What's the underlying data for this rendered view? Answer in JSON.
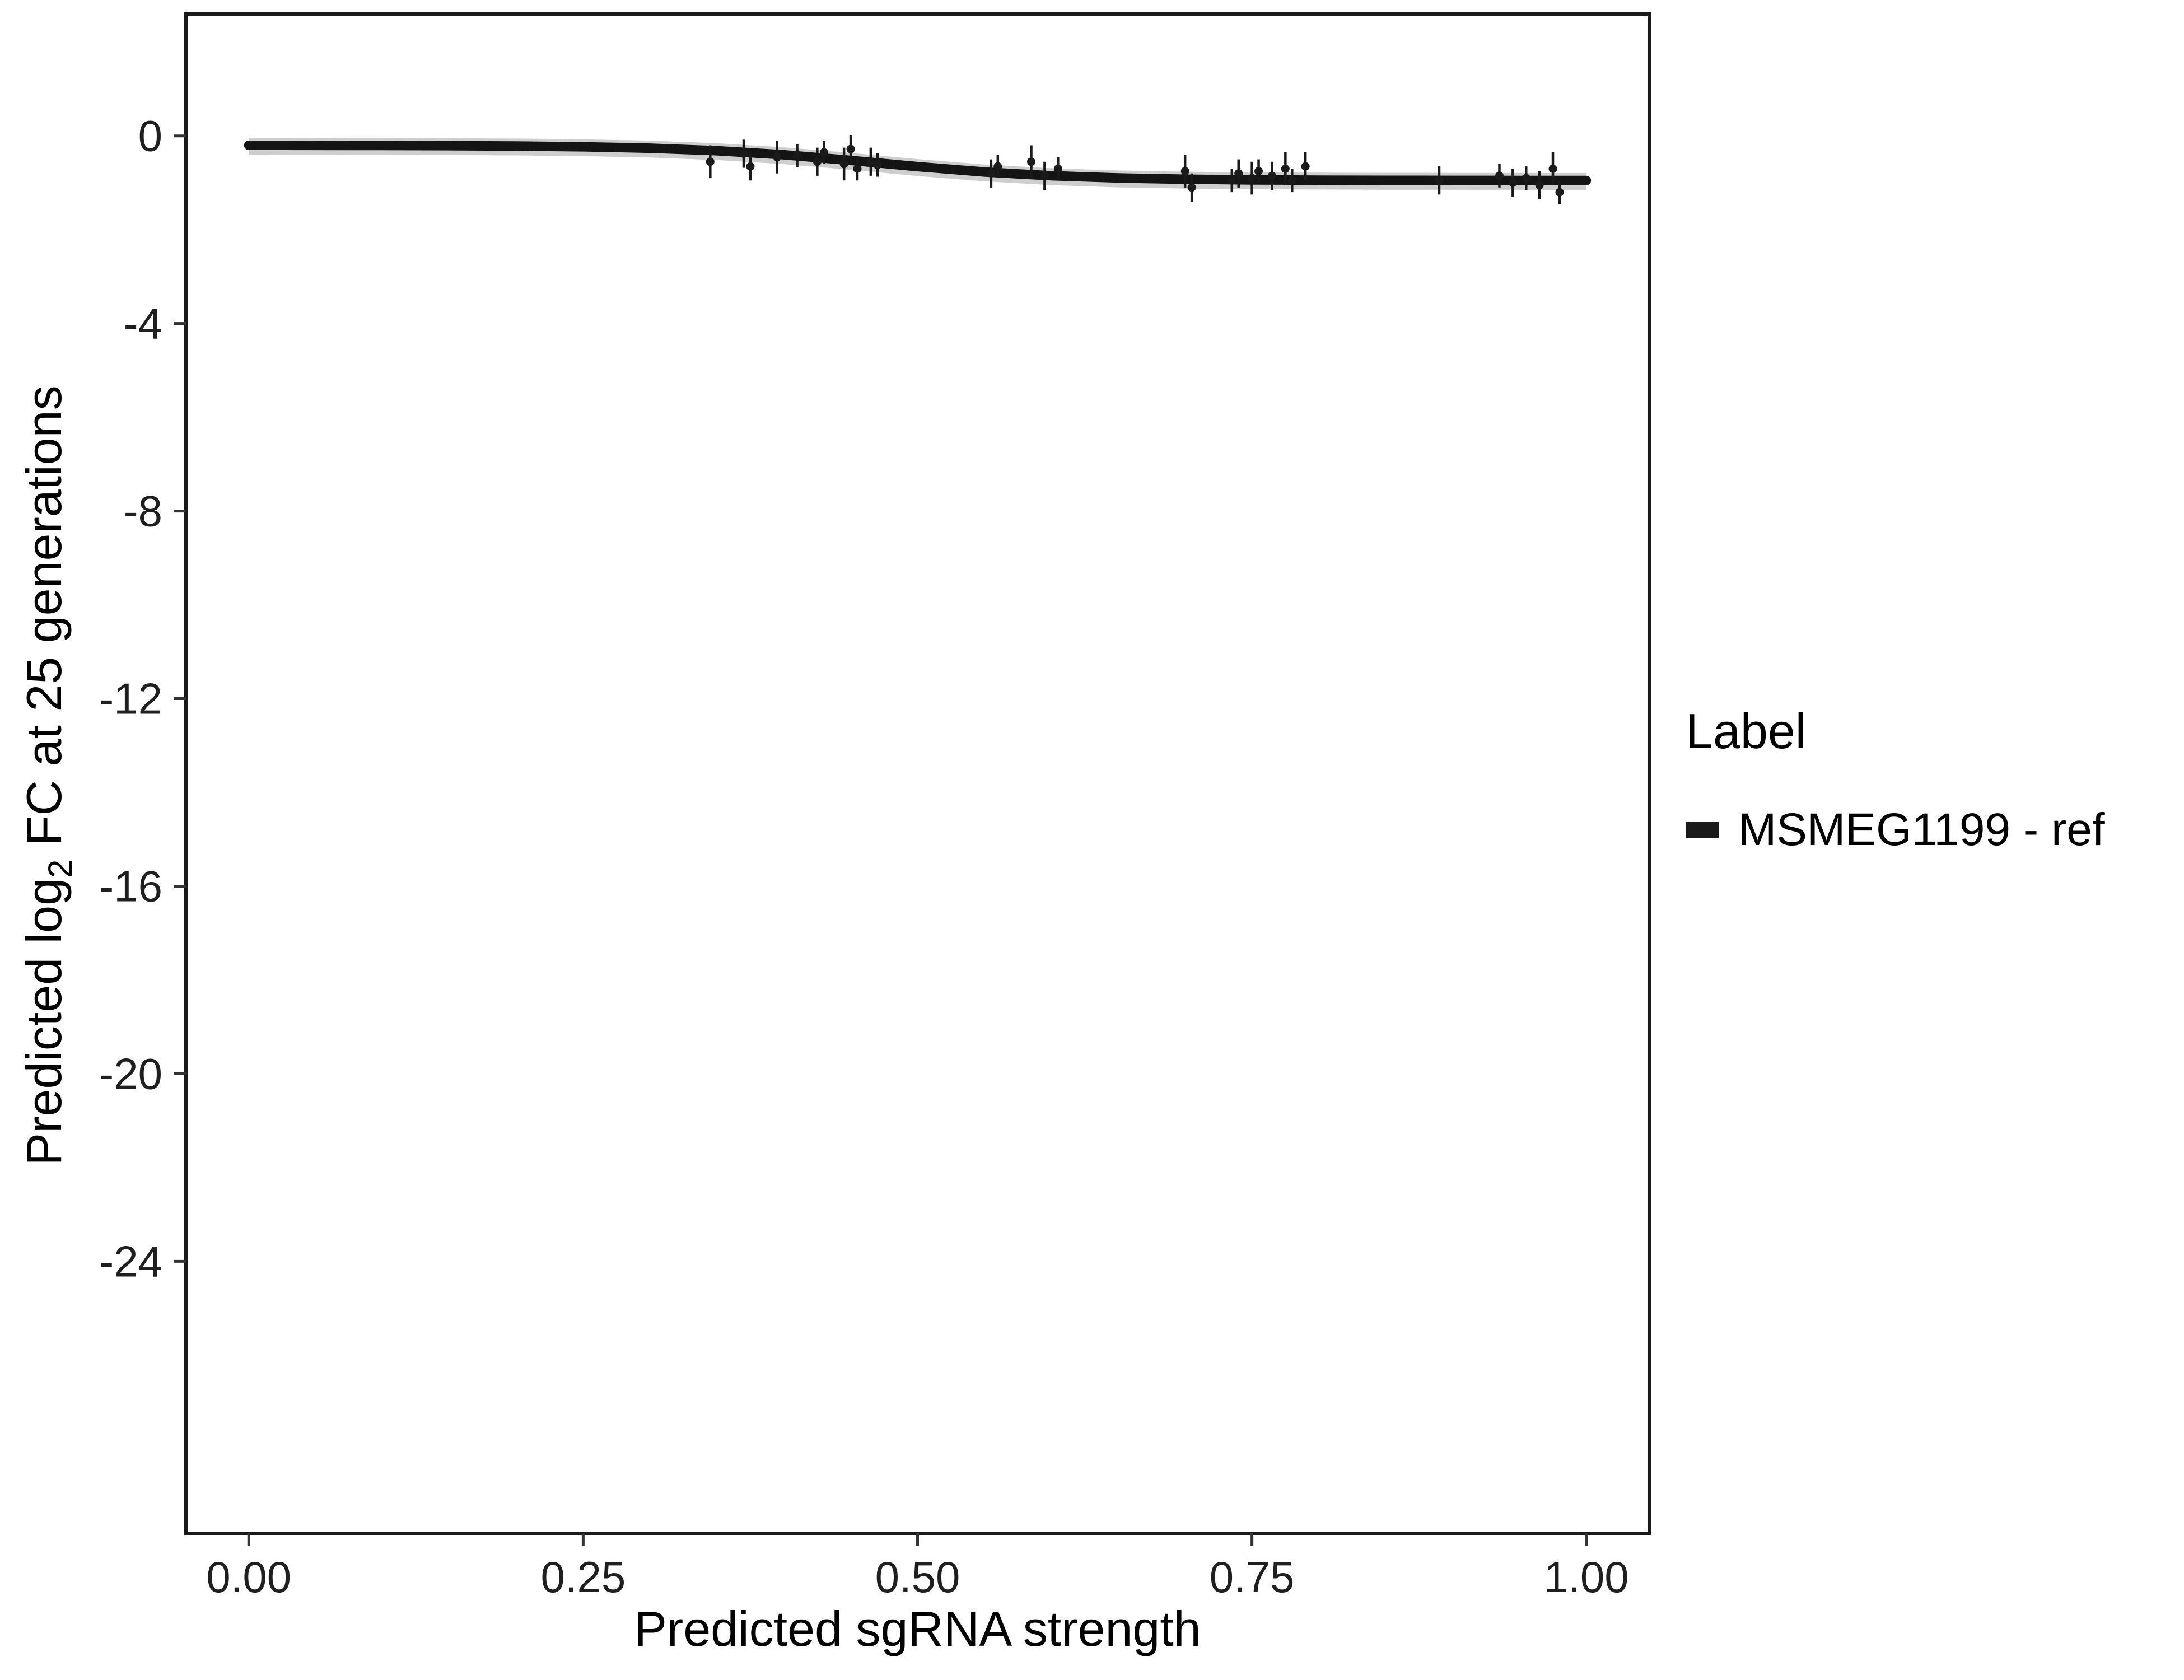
{
  "chart_data": {
    "type": "scatter",
    "title": "",
    "xlabel": "Predicted sgRNA strength",
    "ylabel": "Predicted log2 FC at 25 generations",
    "ylabel_parts": {
      "pre": "Predicted log",
      "sub": "2",
      "post": " FC at 25 generations"
    },
    "xlim": [
      -0.047,
      1.047
    ],
    "ylim": [
      -29.8,
      2.6
    ],
    "grid": false,
    "x_tick_values": [
      0,
      0.25,
      0.5,
      0.75,
      1.0
    ],
    "x_tick_labels": [
      "0.00",
      "0.25",
      "0.50",
      "0.75",
      "1.00"
    ],
    "y_tick_values": [
      0,
      -4,
      -8,
      -12,
      -16,
      -20,
      -24
    ],
    "y_tick_labels": [
      "0",
      "-4",
      "-8",
      "-12",
      "-16",
      "-20",
      "-24"
    ],
    "legend": {
      "title": "Label",
      "position": "right",
      "entries": [
        {
          "label": "MSMEG1199 - ref",
          "color": "#1a1a1a"
        }
      ]
    },
    "colors": {
      "line": "#141414",
      "ribbon": "#bdbdbd",
      "point": "#1a1a1a",
      "panel_border": "#1a1a1a",
      "tick": "#333333"
    },
    "fit_line": {
      "x": [
        0,
        0.05,
        0.1,
        0.15,
        0.2,
        0.25,
        0.3,
        0.35,
        0.4,
        0.45,
        0.5,
        0.55,
        0.6,
        0.65,
        0.7,
        0.75,
        0.8,
        0.85,
        0.9,
        0.95,
        1.0
      ],
      "y": [
        -0.201,
        -0.202,
        -0.204,
        -0.208,
        -0.216,
        -0.231,
        -0.261,
        -0.315,
        -0.402,
        -0.522,
        -0.654,
        -0.769,
        -0.849,
        -0.897,
        -0.923,
        -0.937,
        -0.943,
        -0.947,
        -0.948,
        -0.949,
        -0.95
      ]
    },
    "ribbon": {
      "x": [
        0,
        0.05,
        0.1,
        0.15,
        0.2,
        0.25,
        0.3,
        0.35,
        0.4,
        0.45,
        0.5,
        0.55,
        0.6,
        0.65,
        0.7,
        0.75,
        0.8,
        0.85,
        0.9,
        0.95,
        1.0
      ],
      "upper": [
        -0.041,
        -0.042,
        -0.044,
        -0.048,
        -0.056,
        -0.071,
        -0.101,
        -0.155,
        -0.242,
        -0.362,
        -0.494,
        -0.609,
        -0.689,
        -0.737,
        -0.763,
        -0.777,
        -0.783,
        -0.787,
        -0.788,
        -0.789,
        -0.79
      ],
      "lower": [
        -0.401,
        -0.402,
        -0.404,
        -0.408,
        -0.416,
        -0.431,
        -0.461,
        -0.515,
        -0.602,
        -0.722,
        -0.854,
        -0.969,
        -1.049,
        -1.097,
        -1.123,
        -1.137,
        -1.143,
        -1.147,
        -1.148,
        -1.149,
        -1.15
      ]
    },
    "points": {
      "x": [
        0.345,
        0.37,
        0.375,
        0.395,
        0.41,
        0.425,
        0.43,
        0.445,
        0.45,
        0.455,
        0.465,
        0.47,
        0.555,
        0.56,
        0.585,
        0.595,
        0.605,
        0.7,
        0.705,
        0.735,
        0.74,
        0.75,
        0.755,
        0.765,
        0.775,
        0.78,
        0.79,
        0.89,
        0.935,
        0.945,
        0.955,
        0.965,
        0.975,
        0.98
      ],
      "y": [
        -0.55,
        -0.38,
        -0.65,
        -0.45,
        -0.42,
        -0.55,
        -0.35,
        -0.6,
        -0.28,
        -0.7,
        -0.55,
        -0.62,
        -0.8,
        -0.65,
        -0.55,
        -0.85,
        -0.7,
        -0.75,
        -1.1,
        -0.95,
        -0.8,
        -0.9,
        -0.75,
        -0.85,
        -0.7,
        -0.95,
        -0.65,
        -0.95,
        -0.85,
        -1.0,
        -0.9,
        -1.05,
        -0.7,
        -1.2
      ],
      "err": [
        0.35,
        0.3,
        0.3,
        0.35,
        0.25,
        0.3,
        0.25,
        0.35,
        0.3,
        0.25,
        0.3,
        0.25,
        0.3,
        0.25,
        0.35,
        0.3,
        0.25,
        0.35,
        0.3,
        0.25,
        0.3,
        0.35,
        0.25,
        0.3,
        0.35,
        0.25,
        0.3,
        0.3,
        0.25,
        0.3,
        0.25,
        0.3,
        0.35,
        0.25
      ]
    }
  }
}
